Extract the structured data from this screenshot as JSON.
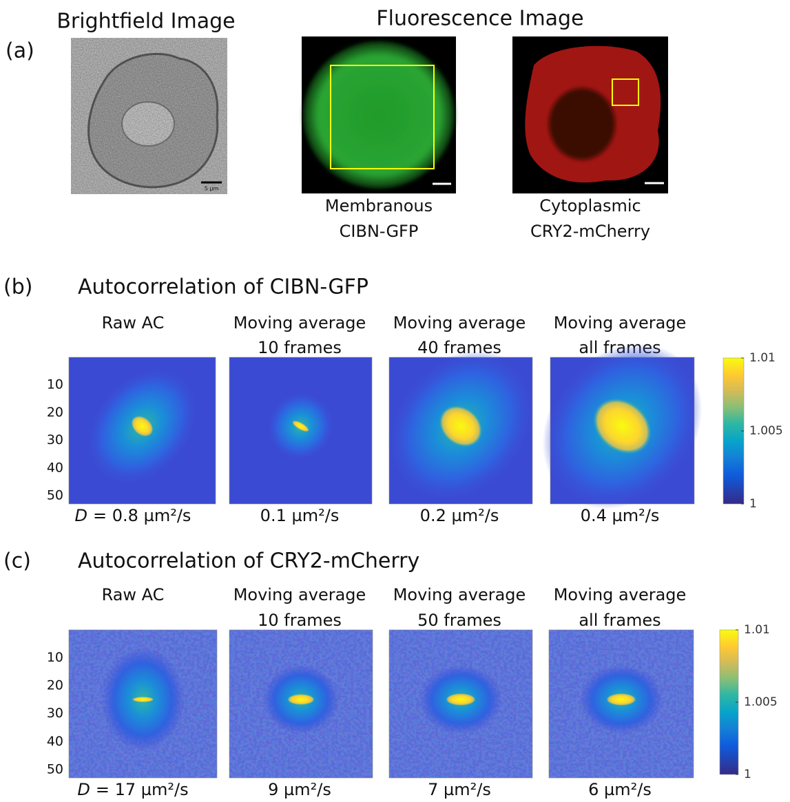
{
  "panel_a": {
    "label": "(a)",
    "brightfield_title": "Brightfield Image",
    "fluorescence_title": "Fluorescence Image",
    "scale_bar": "5 µm",
    "captions": [
      [
        "Membranous",
        "CIBN-GFP"
      ],
      [
        "Cytoplasmic",
        "CRY2-mCherry"
      ]
    ]
  },
  "panels": [
    {
      "label": "(b)",
      "title": "Autocorrelation of CIBN-GFP",
      "ylim": [
        0,
        53
      ],
      "yticks": [
        10,
        20,
        30,
        40,
        50
      ],
      "maps": [
        {
          "title": [
            "Raw AC"
          ],
          "diffusion": {
            "symbol": "D",
            "value": "= 0.8 µm²/s"
          }
        },
        {
          "title": [
            "Moving average",
            "10 frames"
          ],
          "diffusion": {
            "value": "0.1 µm²/s"
          }
        },
        {
          "title": [
            "Moving average",
            "40 frames"
          ],
          "diffusion": {
            "value": "0.2 µm²/s"
          }
        },
        {
          "title": [
            "Moving average",
            "all frames"
          ],
          "diffusion": {
            "value": "0.4 µm²/s"
          }
        }
      ],
      "colorbar": {
        "lim": [
          1,
          1.01
        ],
        "ticks": [
          1.01,
          1.005,
          1
        ]
      }
    },
    {
      "label": "(c)",
      "title": "Autocorrelation of CRY2-mCherry",
      "ylim": [
        0,
        53
      ],
      "yticks": [
        10,
        20,
        30,
        40,
        50
      ],
      "maps": [
        {
          "title": [
            "Raw AC"
          ],
          "diffusion": {
            "symbol": "D",
            "value": "= 17 µm²/s"
          }
        },
        {
          "title": [
            "Moving average",
            "10 frames"
          ],
          "diffusion": {
            "value": "9 µm²/s"
          }
        },
        {
          "title": [
            "Moving average",
            "50 frames"
          ],
          "diffusion": {
            "value": "7 µm²/s"
          }
        },
        {
          "title": [
            "Moving average",
            "all frames"
          ],
          "diffusion": {
            "value": "6 µm²/s"
          }
        }
      ],
      "colorbar": {
        "lim": [
          1,
          1.01
        ],
        "ticks": [
          1.01,
          1.005,
          1
        ]
      }
    }
  ]
}
